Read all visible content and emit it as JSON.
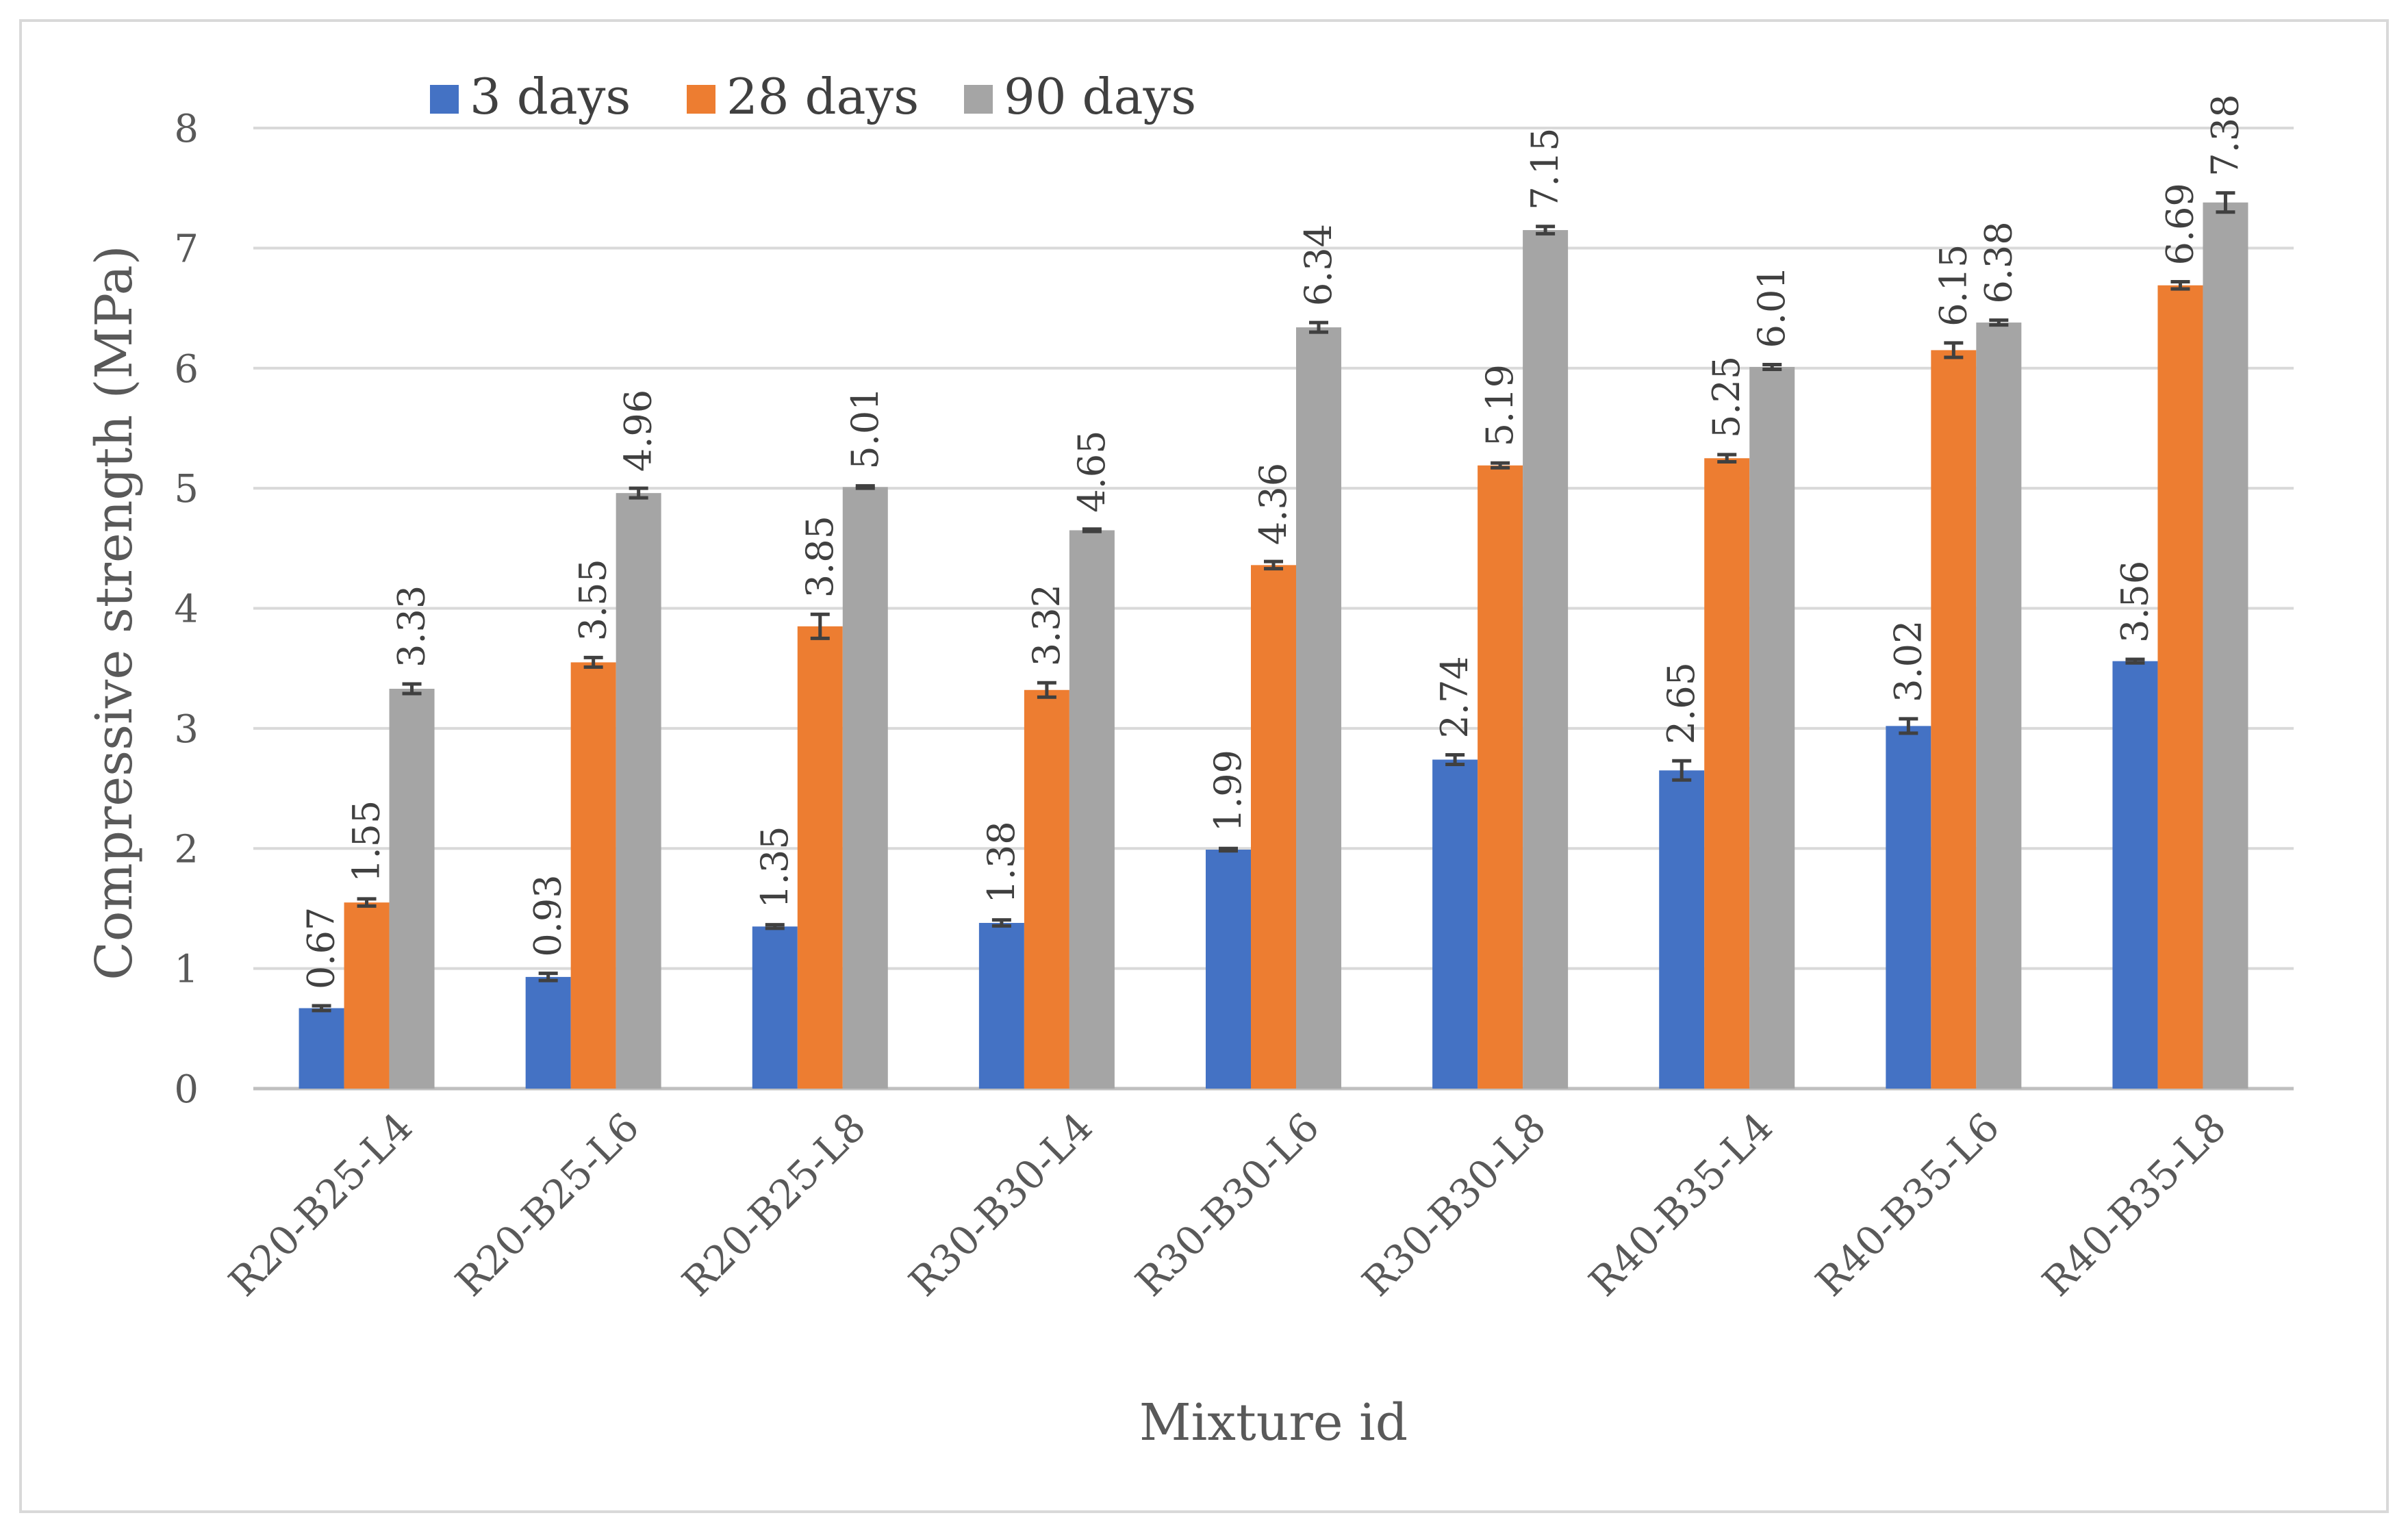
{
  "chart_data": {
    "type": "bar",
    "title": "",
    "xlabel": "Mixture id",
    "ylabel": "Compressive strength (MPa)",
    "ylim": [
      0,
      8
    ],
    "yticks": [
      0,
      1,
      2,
      3,
      4,
      5,
      6,
      7,
      8
    ],
    "grid": true,
    "legend_position": "top",
    "categories": [
      "R20-B25-L4",
      "R20-B25-L6",
      "R20-B25-L8",
      "R30-B30-L4",
      "R30-B30-L6",
      "R30-B30-L8",
      "R40-B35-L4",
      "R40-B35-L6",
      "R40-B35-L8"
    ],
    "series": [
      {
        "name": "3 days",
        "color": "#4472C4",
        "values": [
          0.67,
          0.93,
          1.35,
          1.38,
          1.99,
          2.74,
          2.65,
          3.02,
          3.56
        ],
        "labels": [
          "0.67",
          "0.93",
          "1.35",
          "1.38",
          "1.99",
          "2.74",
          "2.65",
          "3.02",
          "3.56"
        ],
        "errors": [
          0.02,
          0.03,
          0.015,
          0.025,
          0.01,
          0.04,
          0.08,
          0.06,
          0.015
        ]
      },
      {
        "name": "28 days",
        "color": "#ED7D31",
        "values": [
          1.55,
          3.55,
          3.85,
          3.32,
          4.36,
          5.19,
          5.25,
          6.15,
          6.69
        ],
        "labels": [
          "1.55",
          "3.55",
          "3.85",
          "3.32",
          "4.36",
          "5.19",
          "5.25",
          "6.15",
          "6.69"
        ],
        "errors": [
          0.03,
          0.04,
          0.1,
          0.06,
          0.03,
          0.02,
          0.03,
          0.06,
          0.03
        ]
      },
      {
        "name": "90 days",
        "color": "#A5A5A5",
        "values": [
          3.33,
          4.96,
          5.01,
          4.65,
          6.34,
          7.15,
          6.01,
          6.38,
          7.38
        ],
        "labels": [
          "3.33",
          "4.96",
          "5.01",
          "4.65",
          "6.34",
          "7.15",
          "6.01",
          "6.38",
          "7.38"
        ],
        "errors": [
          0.04,
          0.04,
          0.01,
          0.01,
          0.04,
          0.03,
          0.02,
          0.02,
          0.08
        ]
      }
    ]
  }
}
